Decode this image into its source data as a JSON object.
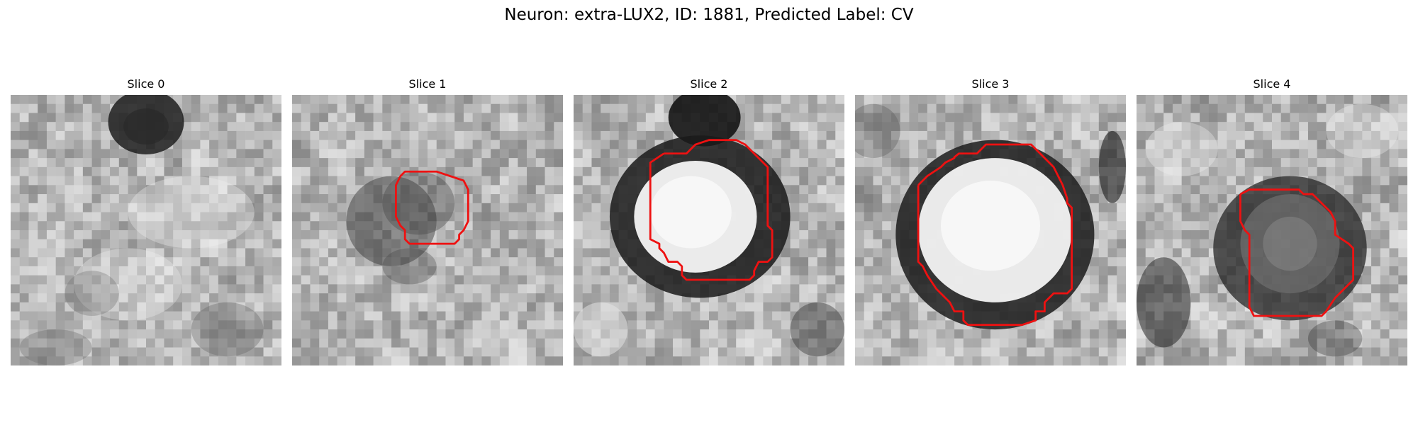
{
  "figure": {
    "title": "Neuron: extra-LUX2, ID: 1881, Predicted Label: CV",
    "contour_color": "#ee1111"
  },
  "slices": [
    {
      "label": "Slice 0",
      "has_contour": false
    },
    {
      "label": "Slice 1",
      "has_contour": true
    },
    {
      "label": "Slice 2",
      "has_contour": true
    },
    {
      "label": "Slice 3",
      "has_contour": true
    },
    {
      "label": "Slice 4",
      "has_contour": true
    }
  ]
}
